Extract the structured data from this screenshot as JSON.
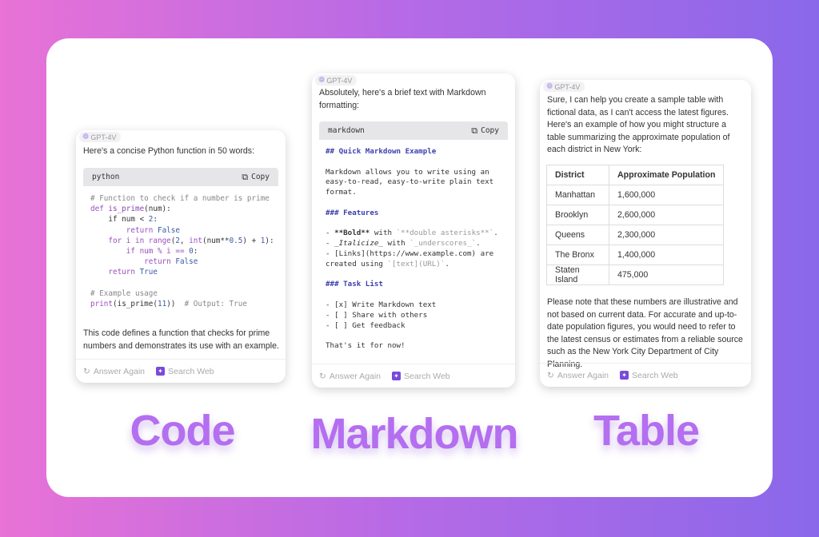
{
  "badge": "GPT-4V",
  "footer": {
    "answer_again": "Answer Again",
    "search_web": "Search Web"
  },
  "copy_label": "Copy",
  "code_card": {
    "intro": "Here's a concise Python function in 50 words:",
    "lang": "python",
    "lines": [
      [
        [
          "# Function to check if a number is prime",
          "cm"
        ]
      ],
      [
        [
          "def ",
          "kw"
        ],
        [
          "is_prime",
          "fn"
        ],
        [
          "(num):",
          ""
        ]
      ],
      [
        [
          "    if num < ",
          ""
        ],
        [
          "2",
          "nm"
        ],
        [
          ":",
          ""
        ]
      ],
      [
        [
          "        return ",
          "kw"
        ],
        [
          "False",
          "cn"
        ]
      ],
      [
        [
          "    for i ",
          "kw"
        ],
        [
          "in range",
          "kw"
        ],
        [
          "(",
          ""
        ],
        [
          "2",
          "nm"
        ],
        [
          ", ",
          ""
        ],
        [
          "int",
          "kw"
        ],
        [
          "(num**",
          ""
        ],
        [
          "0.5",
          "nm"
        ],
        [
          ") + ",
          ""
        ],
        [
          "1",
          "nm"
        ],
        [
          "):",
          ""
        ]
      ],
      [
        [
          "        if num % i == ",
          "kw"
        ],
        [
          "0",
          "nm"
        ],
        [
          ":",
          ""
        ]
      ],
      [
        [
          "            return ",
          "kw"
        ],
        [
          "False",
          "cn"
        ]
      ],
      [
        [
          "    return ",
          "kw"
        ],
        [
          "True",
          "cn"
        ]
      ],
      [
        [
          "",
          ""
        ]
      ],
      [
        [
          "# Example usage",
          "cm"
        ]
      ],
      [
        [
          "print",
          "kw"
        ],
        [
          "(is_prime(",
          ""
        ],
        [
          "11",
          "nm"
        ],
        [
          "))  ",
          ""
        ],
        [
          "# Output: True",
          "cm"
        ]
      ]
    ],
    "outro": "This code defines a function that checks for prime numbers and demonstrates its use with an example.",
    "label": "Code"
  },
  "md_card": {
    "intro": "Absolutely, here's a brief text with Markdown formatting:",
    "lang": "markdown",
    "lines": [
      [
        [
          "## Quick Markdown Example",
          "hd"
        ]
      ],
      [
        [
          "",
          ""
        ]
      ],
      [
        [
          "Markdown allows you to write using an",
          ""
        ]
      ],
      [
        [
          "easy-to-read, easy-to-write plain text",
          ""
        ]
      ],
      [
        [
          "format.",
          ""
        ]
      ],
      [
        [
          "",
          ""
        ]
      ],
      [
        [
          "### Features",
          "hd"
        ]
      ],
      [
        [
          "",
          ""
        ]
      ],
      [
        [
          "- ",
          ""
        ],
        [
          "**Bold**",
          "b"
        ],
        [
          " with ",
          ""
        ],
        [
          "`**double asterisks**`",
          "mut"
        ],
        [
          ".",
          ""
        ]
      ],
      [
        [
          "- ",
          ""
        ],
        [
          "_Italicize_",
          "i"
        ],
        [
          " with ",
          ""
        ],
        [
          "`_underscores_`",
          "mut"
        ],
        [
          ".",
          ""
        ]
      ],
      [
        [
          "- [Links](https://www.example.com) are",
          ""
        ]
      ],
      [
        [
          "created using ",
          ""
        ],
        [
          "`[text](URL)`",
          "mut"
        ],
        [
          ".",
          ""
        ]
      ],
      [
        [
          "",
          ""
        ]
      ],
      [
        [
          "### Task List",
          "hd"
        ]
      ],
      [
        [
          "",
          ""
        ]
      ],
      [
        [
          "- [x] Write Markdown text",
          ""
        ]
      ],
      [
        [
          "- [ ] Share with others",
          ""
        ]
      ],
      [
        [
          "- [ ] Get feedback",
          ""
        ]
      ],
      [
        [
          "",
          ""
        ]
      ],
      [
        [
          "That's it for now!",
          ""
        ]
      ]
    ],
    "label": "Markdown"
  },
  "table_card": {
    "intro": "Sure, I can help you create a sample table with fictional data, as I can't access the latest figures. Here's an example of how you might structure a table summarizing the approximate population of each district in New York:",
    "headers": [
      "District",
      "Approximate Population"
    ],
    "rows": [
      [
        "Manhattan",
        "1,600,000"
      ],
      [
        "Brooklyn",
        "2,600,000"
      ],
      [
        "Queens",
        "2,300,000"
      ],
      [
        "The Bronx",
        "1,400,000"
      ],
      [
        "Staten Island",
        "475,000"
      ]
    ],
    "outro": "Please note that these numbers are illustrative and not based on current data. For accurate and up-to-date population figures, you would need to refer to the latest census or estimates from a reliable source such as the New York City Department of City Planning.",
    "label": "Table"
  }
}
